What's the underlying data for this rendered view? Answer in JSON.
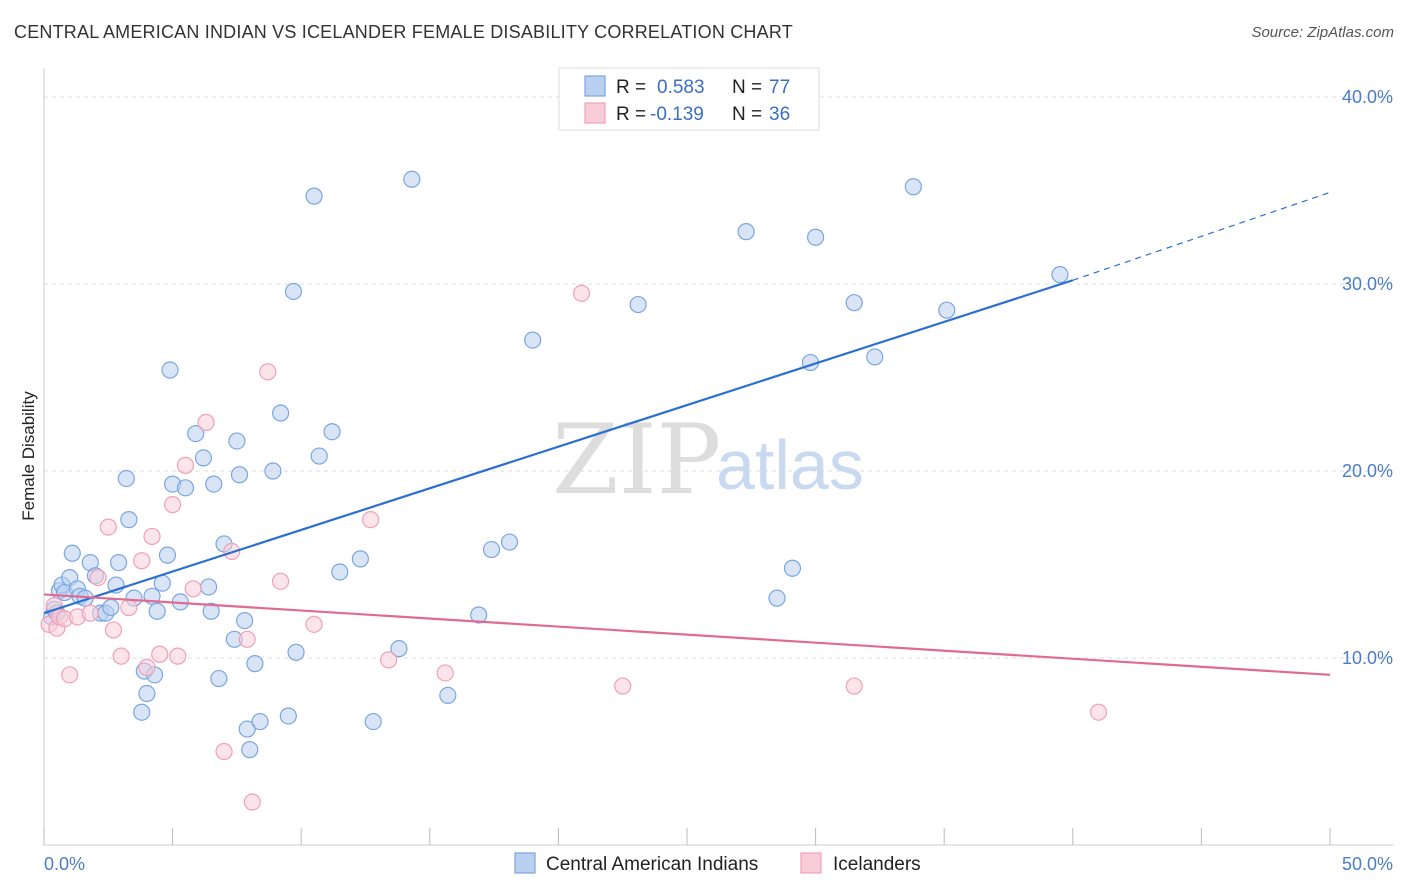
{
  "title": "CENTRAL AMERICAN INDIAN VS ICELANDER FEMALE DISABILITY CORRELATION CHART",
  "source": "Source: ZipAtlas.com",
  "watermark": {
    "zip": "ZIP",
    "atlas": "atlas"
  },
  "chart_data": {
    "type": "scatter",
    "title": "CENTRAL AMERICAN INDIAN VS ICELANDER FEMALE DISABILITY CORRELATION CHART",
    "xlabel": "",
    "ylabel": "Female Disability",
    "xlim": [
      0,
      50
    ],
    "ylim": [
      0,
      40
    ],
    "x_tick_labels": {
      "min": "0.0%",
      "max": "50.0%"
    },
    "y_ticks": [
      {
        "value": 10,
        "label": "10.0%"
      },
      {
        "value": 20,
        "label": "20.0%"
      },
      {
        "value": 30,
        "label": "30.0%"
      },
      {
        "value": 40,
        "label": "40.0%"
      }
    ],
    "grid": true,
    "legend_position": "top-center",
    "series": [
      {
        "name": "Central American Indians",
        "color": "#7aa6e0",
        "fill": "#b9d0f0",
        "line_color": "#2b6fd1",
        "R": "0.583",
        "N": "77",
        "trend": {
          "x0": 0,
          "y0": 12.4,
          "x1": 40,
          "y1": 30.2,
          "dash_x1": 50,
          "dash_y1": 34.9
        },
        "points": [
          [
            0.3,
            12.2
          ],
          [
            0.4,
            12.6
          ],
          [
            0.5,
            12.4
          ],
          [
            0.6,
            13.6
          ],
          [
            0.7,
            13.9
          ],
          [
            0.8,
            13.5
          ],
          [
            1.0,
            14.3
          ],
          [
            1.1,
            15.6
          ],
          [
            1.3,
            13.7
          ],
          [
            1.4,
            13.3
          ],
          [
            1.6,
            13.2
          ],
          [
            1.8,
            15.1
          ],
          [
            2.0,
            14.4
          ],
          [
            2.2,
            12.4
          ],
          [
            2.4,
            12.4
          ],
          [
            2.6,
            12.7
          ],
          [
            2.8,
            13.9
          ],
          [
            2.9,
            15.1
          ],
          [
            3.2,
            19.6
          ],
          [
            3.3,
            17.4
          ],
          [
            3.5,
            13.2
          ],
          [
            3.8,
            7.1
          ],
          [
            3.9,
            9.3
          ],
          [
            4.0,
            8.1
          ],
          [
            4.2,
            13.3
          ],
          [
            4.3,
            9.1
          ],
          [
            4.4,
            12.5
          ],
          [
            4.6,
            14.0
          ],
          [
            4.8,
            15.5
          ],
          [
            4.9,
            25.4
          ],
          [
            5.0,
            19.3
          ],
          [
            5.3,
            13.0
          ],
          [
            5.5,
            19.1
          ],
          [
            5.9,
            22.0
          ],
          [
            6.2,
            20.7
          ],
          [
            6.4,
            13.8
          ],
          [
            6.5,
            12.5
          ],
          [
            6.6,
            19.3
          ],
          [
            6.8,
            8.9
          ],
          [
            7.0,
            16.1
          ],
          [
            7.4,
            11.0
          ],
          [
            7.5,
            21.6
          ],
          [
            7.6,
            19.8
          ],
          [
            7.8,
            12.0
          ],
          [
            7.9,
            6.2
          ],
          [
            8.0,
            5.1
          ],
          [
            8.2,
            9.7
          ],
          [
            8.4,
            6.6
          ],
          [
            8.9,
            20.0
          ],
          [
            9.2,
            23.1
          ],
          [
            9.5,
            6.9
          ],
          [
            9.7,
            29.6
          ],
          [
            9.8,
            10.3
          ],
          [
            10.5,
            34.7
          ],
          [
            10.7,
            20.8
          ],
          [
            11.2,
            22.1
          ],
          [
            11.5,
            14.6
          ],
          [
            12.3,
            15.3
          ],
          [
            12.8,
            6.6
          ],
          [
            13.8,
            10.5
          ],
          [
            14.3,
            35.6
          ],
          [
            15.7,
            8.0
          ],
          [
            16.9,
            12.3
          ],
          [
            17.4,
            15.8
          ],
          [
            18.1,
            16.2
          ],
          [
            19.0,
            27.0
          ],
          [
            23.1,
            28.9
          ],
          [
            27.3,
            32.8
          ],
          [
            28.5,
            13.2
          ],
          [
            29.1,
            14.8
          ],
          [
            29.8,
            25.8
          ],
          [
            30.0,
            32.5
          ],
          [
            31.5,
            29.0
          ],
          [
            32.3,
            26.1
          ],
          [
            33.8,
            35.2
          ],
          [
            35.1,
            28.6
          ],
          [
            39.5,
            30.5
          ]
        ]
      },
      {
        "name": "Icelanders",
        "color": "#f0a0b8",
        "fill": "#f8cdd9",
        "line_color": "#e06a92",
        "R": "-0.139",
        "N": "36",
        "trend": {
          "x0": 0,
          "y0": 13.4,
          "x1": 50,
          "y1": 9.1
        },
        "points": [
          [
            0.2,
            11.8
          ],
          [
            0.4,
            12.8
          ],
          [
            0.5,
            11.6
          ],
          [
            0.6,
            12.2
          ],
          [
            0.8,
            12.1
          ],
          [
            1.0,
            9.1
          ],
          [
            1.3,
            12.2
          ],
          [
            1.8,
            12.4
          ],
          [
            2.1,
            14.3
          ],
          [
            2.5,
            17.0
          ],
          [
            2.7,
            11.5
          ],
          [
            3.0,
            10.1
          ],
          [
            3.3,
            12.7
          ],
          [
            3.8,
            15.2
          ],
          [
            4.0,
            9.5
          ],
          [
            4.2,
            16.5
          ],
          [
            4.5,
            10.2
          ],
          [
            5.0,
            18.2
          ],
          [
            5.2,
            10.1
          ],
          [
            5.5,
            20.3
          ],
          [
            5.8,
            13.7
          ],
          [
            6.3,
            22.6
          ],
          [
            7.0,
            5.0
          ],
          [
            7.3,
            15.7
          ],
          [
            7.9,
            11.0
          ],
          [
            8.1,
            2.3
          ],
          [
            8.7,
            25.3
          ],
          [
            9.2,
            14.1
          ],
          [
            10.5,
            11.8
          ],
          [
            12.7,
            17.4
          ],
          [
            13.4,
            9.9
          ],
          [
            15.6,
            9.2
          ],
          [
            20.9,
            29.5
          ],
          [
            22.5,
            8.5
          ],
          [
            31.5,
            8.5
          ],
          [
            41.0,
            7.1
          ]
        ]
      }
    ]
  }
}
